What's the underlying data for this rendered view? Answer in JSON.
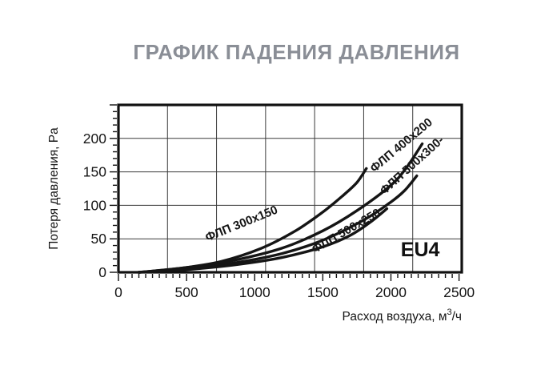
{
  "page": {
    "title": "ГРАФИК ПАДЕНИЯ ДАВЛЕНИЯ",
    "title_color": "#8a8e96",
    "background": "#ffffff"
  },
  "chart_data": {
    "type": "line",
    "title": "ГРАФИК ПАДЕНИЯ ДАВЛЕНИЯ",
    "xlabel": {
      "pre": "Расход воздуха, м",
      "sup": "3",
      "post": "/ч"
    },
    "ylabel": "Потеря давления, Pa",
    "xlim": [
      0,
      2520
    ],
    "ylim": [
      0,
      250
    ],
    "x_ticks": [
      0,
      500,
      1000,
      1500,
      2000,
      2500
    ],
    "y_ticks": [
      0,
      50,
      100,
      150,
      200
    ],
    "x_minor_step": 50,
    "y_minor_step": 10,
    "grid": {
      "vertical_divisions": 7,
      "horizontal_step": 50,
      "on": true
    },
    "line_color": "#151515",
    "grid_color": "#3a3a3a",
    "curve_width": 3.4,
    "series": [
      {
        "name": "ФЛП 300x150",
        "points": [
          [
            150,
            0
          ],
          [
            450,
            6
          ],
          [
            750,
            16
          ],
          [
            1050,
            36
          ],
          [
            1300,
            62
          ],
          [
            1500,
            90
          ],
          [
            1650,
            115
          ],
          [
            1750,
            134
          ],
          [
            1820,
            155
          ]
        ]
      },
      {
        "name": "ФЛП 400x200",
        "points": [
          [
            150,
            0
          ],
          [
            500,
            7
          ],
          [
            850,
            18
          ],
          [
            1200,
            36
          ],
          [
            1500,
            62
          ],
          [
            1750,
            92
          ],
          [
            2000,
            130
          ],
          [
            2120,
            158
          ],
          [
            2230,
            192
          ]
        ]
      },
      {
        "name": "ФЛП 500x300",
        "points": [
          [
            150,
            0
          ],
          [
            500,
            5
          ],
          [
            850,
            14
          ],
          [
            1200,
            28
          ],
          [
            1500,
            48
          ],
          [
            1800,
            78
          ],
          [
            2000,
            105
          ],
          [
            2100,
            122
          ],
          [
            2190,
            144
          ]
        ]
      },
      {
        "name": "ФЛП 500x250",
        "points": [
          [
            150,
            0
          ],
          [
            500,
            4
          ],
          [
            850,
            11
          ],
          [
            1200,
            22
          ],
          [
            1500,
            38
          ],
          [
            1700,
            55
          ],
          [
            1850,
            75
          ],
          [
            1970,
            95
          ]
        ]
      }
    ],
    "curve_labels": [
      {
        "text": "ФЛП 300x150",
        "fx": 0.359,
        "fy": 0.713,
        "rot": -22
      },
      {
        "text": "ФЛП 400x200",
        "fx": 0.825,
        "fy": 0.244,
        "rot": -40
      },
      {
        "text": "ФЛП 500x300-",
        "fx": 0.856,
        "fy": 0.364,
        "rot": -42
      },
      {
        "text": "ФЛП 500x250",
        "fx": 0.664,
        "fy": 0.756,
        "rot": -30
      }
    ],
    "annotation": {
      "text": "EU4",
      "fx": 0.879,
      "fy": 0.905
    },
    "legend": "none"
  }
}
